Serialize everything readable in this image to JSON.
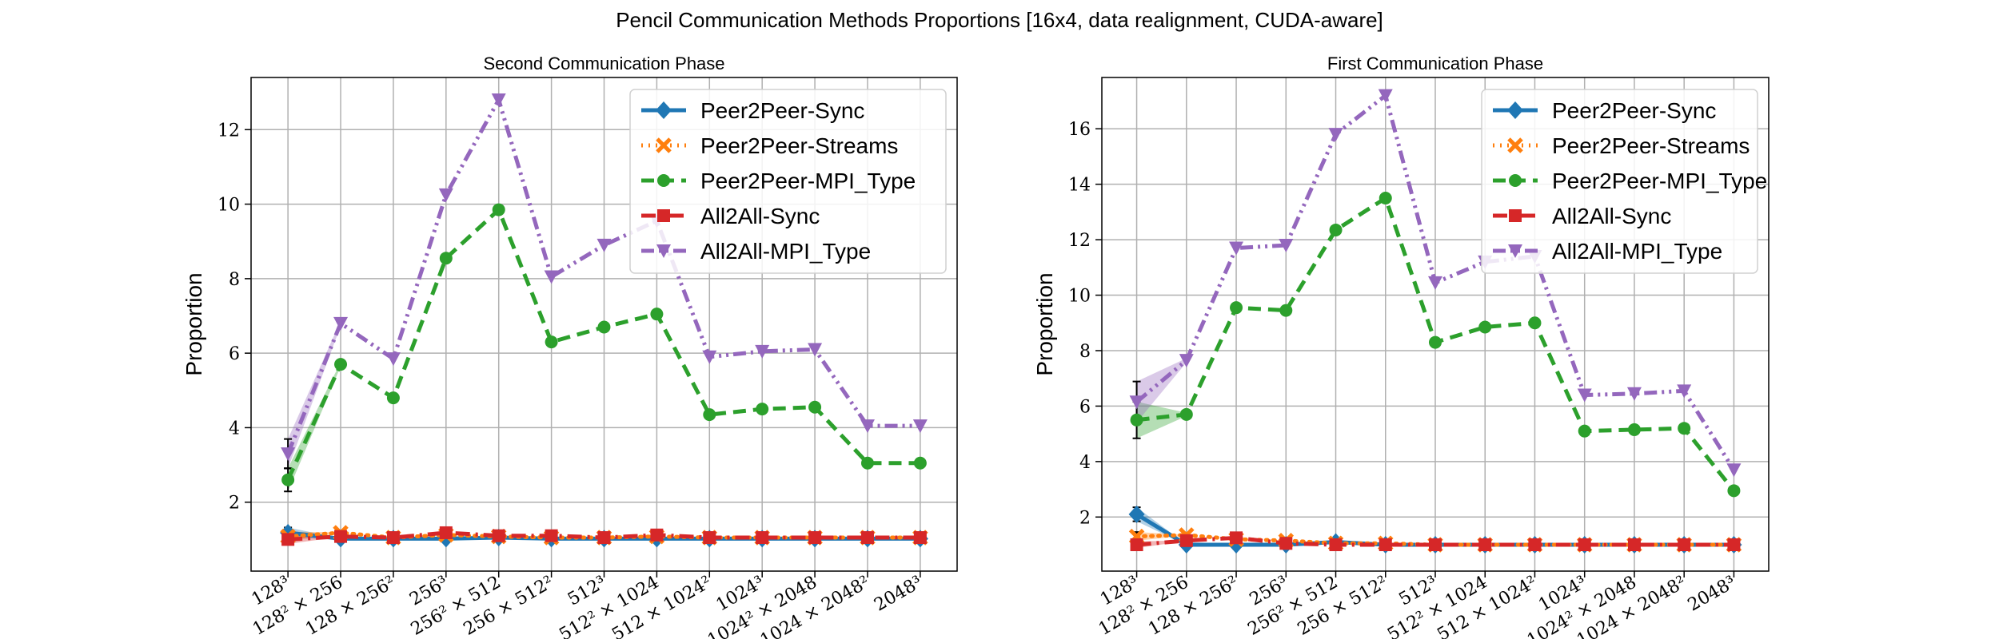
{
  "suptitle": "Pencil Communication Methods Proportions [16x4, data realignment, CUDA-aware]",
  "categories": [
    "128³",
    "128² × 256",
    "128 × 256²",
    "256³",
    "256² × 512",
    "256 × 512²",
    "512³",
    "512² × 1024",
    "512 × 1024²",
    "1024³",
    "1024² × 2048",
    "1024 × 2048²",
    "2048³"
  ],
  "colors": {
    "Peer2Peer-Sync": "#1f77b4",
    "Peer2Peer-Streams": "#ff7f0e",
    "Peer2Peer-MPI_Type": "#2ca02c",
    "All2All-Sync": "#d62728",
    "All2All-MPI_Type": "#9467bd"
  },
  "chart_data": [
    {
      "type": "line",
      "title": "Second Communication Phase",
      "ylabel": "Proportion",
      "ylim": [
        0.15,
        13.4
      ],
      "yticks": [
        2,
        4,
        6,
        8,
        10,
        12
      ],
      "grid": true,
      "legend_position": "top-right",
      "series": [
        {
          "name": "Peer2Peer-Sync",
          "marker": "diamond",
          "dash": "solid",
          "values": [
            1.18,
            1.02,
            1.02,
            1.02,
            1.05,
            1.02,
            1.02,
            1.02,
            1.02,
            1.02,
            1.02,
            1.02,
            1.02
          ]
        },
        {
          "name": "Peer2Peer-Streams",
          "marker": "x",
          "dash": "dotted",
          "values": [
            1.08,
            1.18,
            1.05,
            1.12,
            1.08,
            1.05,
            1.05,
            1.08,
            1.05,
            1.05,
            1.05,
            1.05,
            1.05
          ]
        },
        {
          "name": "Peer2Peer-MPI_Type",
          "marker": "circle",
          "dash": "dashed",
          "values": [
            2.6,
            5.7,
            4.8,
            8.55,
            9.85,
            6.3,
            6.7,
            7.05,
            4.35,
            4.5,
            4.55,
            3.05,
            3.05
          ]
        },
        {
          "name": "All2All-Sync",
          "marker": "square",
          "dash": "dashdot",
          "values": [
            1.0,
            1.08,
            1.05,
            1.18,
            1.1,
            1.1,
            1.05,
            1.12,
            1.05,
            1.05,
            1.05,
            1.05,
            1.05
          ]
        },
        {
          "name": "All2All-MPI_Type",
          "marker": "triangle-down",
          "dash": "dashdotdot",
          "values": [
            3.3,
            6.8,
            5.85,
            10.25,
            12.8,
            8.05,
            8.9,
            9.55,
            5.9,
            6.05,
            6.1,
            4.05,
            4.05
          ]
        }
      ]
    },
    {
      "type": "line",
      "title": "First Communication Phase",
      "ylabel": "Proportion",
      "ylim": [
        0.05,
        17.85
      ],
      "yticks": [
        2,
        4,
        6,
        8,
        10,
        12,
        14,
        16
      ],
      "grid": true,
      "legend_position": "top-right",
      "series": [
        {
          "name": "Peer2Peer-Sync",
          "marker": "diamond",
          "dash": "solid",
          "values": [
            2.1,
            1.0,
            1.0,
            1.0,
            1.1,
            1.0,
            1.0,
            1.0,
            1.0,
            1.0,
            1.0,
            1.0,
            1.0
          ]
        },
        {
          "name": "Peer2Peer-Streams",
          "marker": "x",
          "dash": "dotted",
          "values": [
            1.3,
            1.35,
            1.2,
            1.15,
            1.05,
            1.05,
            1.0,
            1.0,
            1.0,
            1.0,
            1.0,
            1.0,
            1.0
          ]
        },
        {
          "name": "Peer2Peer-MPI_Type",
          "marker": "circle",
          "dash": "dashed",
          "values": [
            5.5,
            5.7,
            9.55,
            9.45,
            12.35,
            13.5,
            8.3,
            8.85,
            9.0,
            5.1,
            5.15,
            5.2,
            2.95
          ]
        },
        {
          "name": "All2All-Sync",
          "marker": "square",
          "dash": "dashdot",
          "values": [
            1.0,
            1.15,
            1.25,
            1.05,
            1.0,
            1.0,
            1.0,
            1.0,
            1.0,
            1.0,
            1.0,
            1.0,
            1.0
          ]
        },
        {
          "name": "All2All-MPI_Type",
          "marker": "triangle-down",
          "dash": "dashdotdot",
          "values": [
            6.15,
            7.65,
            11.7,
            11.8,
            15.8,
            17.2,
            10.45,
            11.2,
            11.4,
            6.4,
            6.45,
            6.55,
            3.7
          ]
        }
      ]
    }
  ]
}
